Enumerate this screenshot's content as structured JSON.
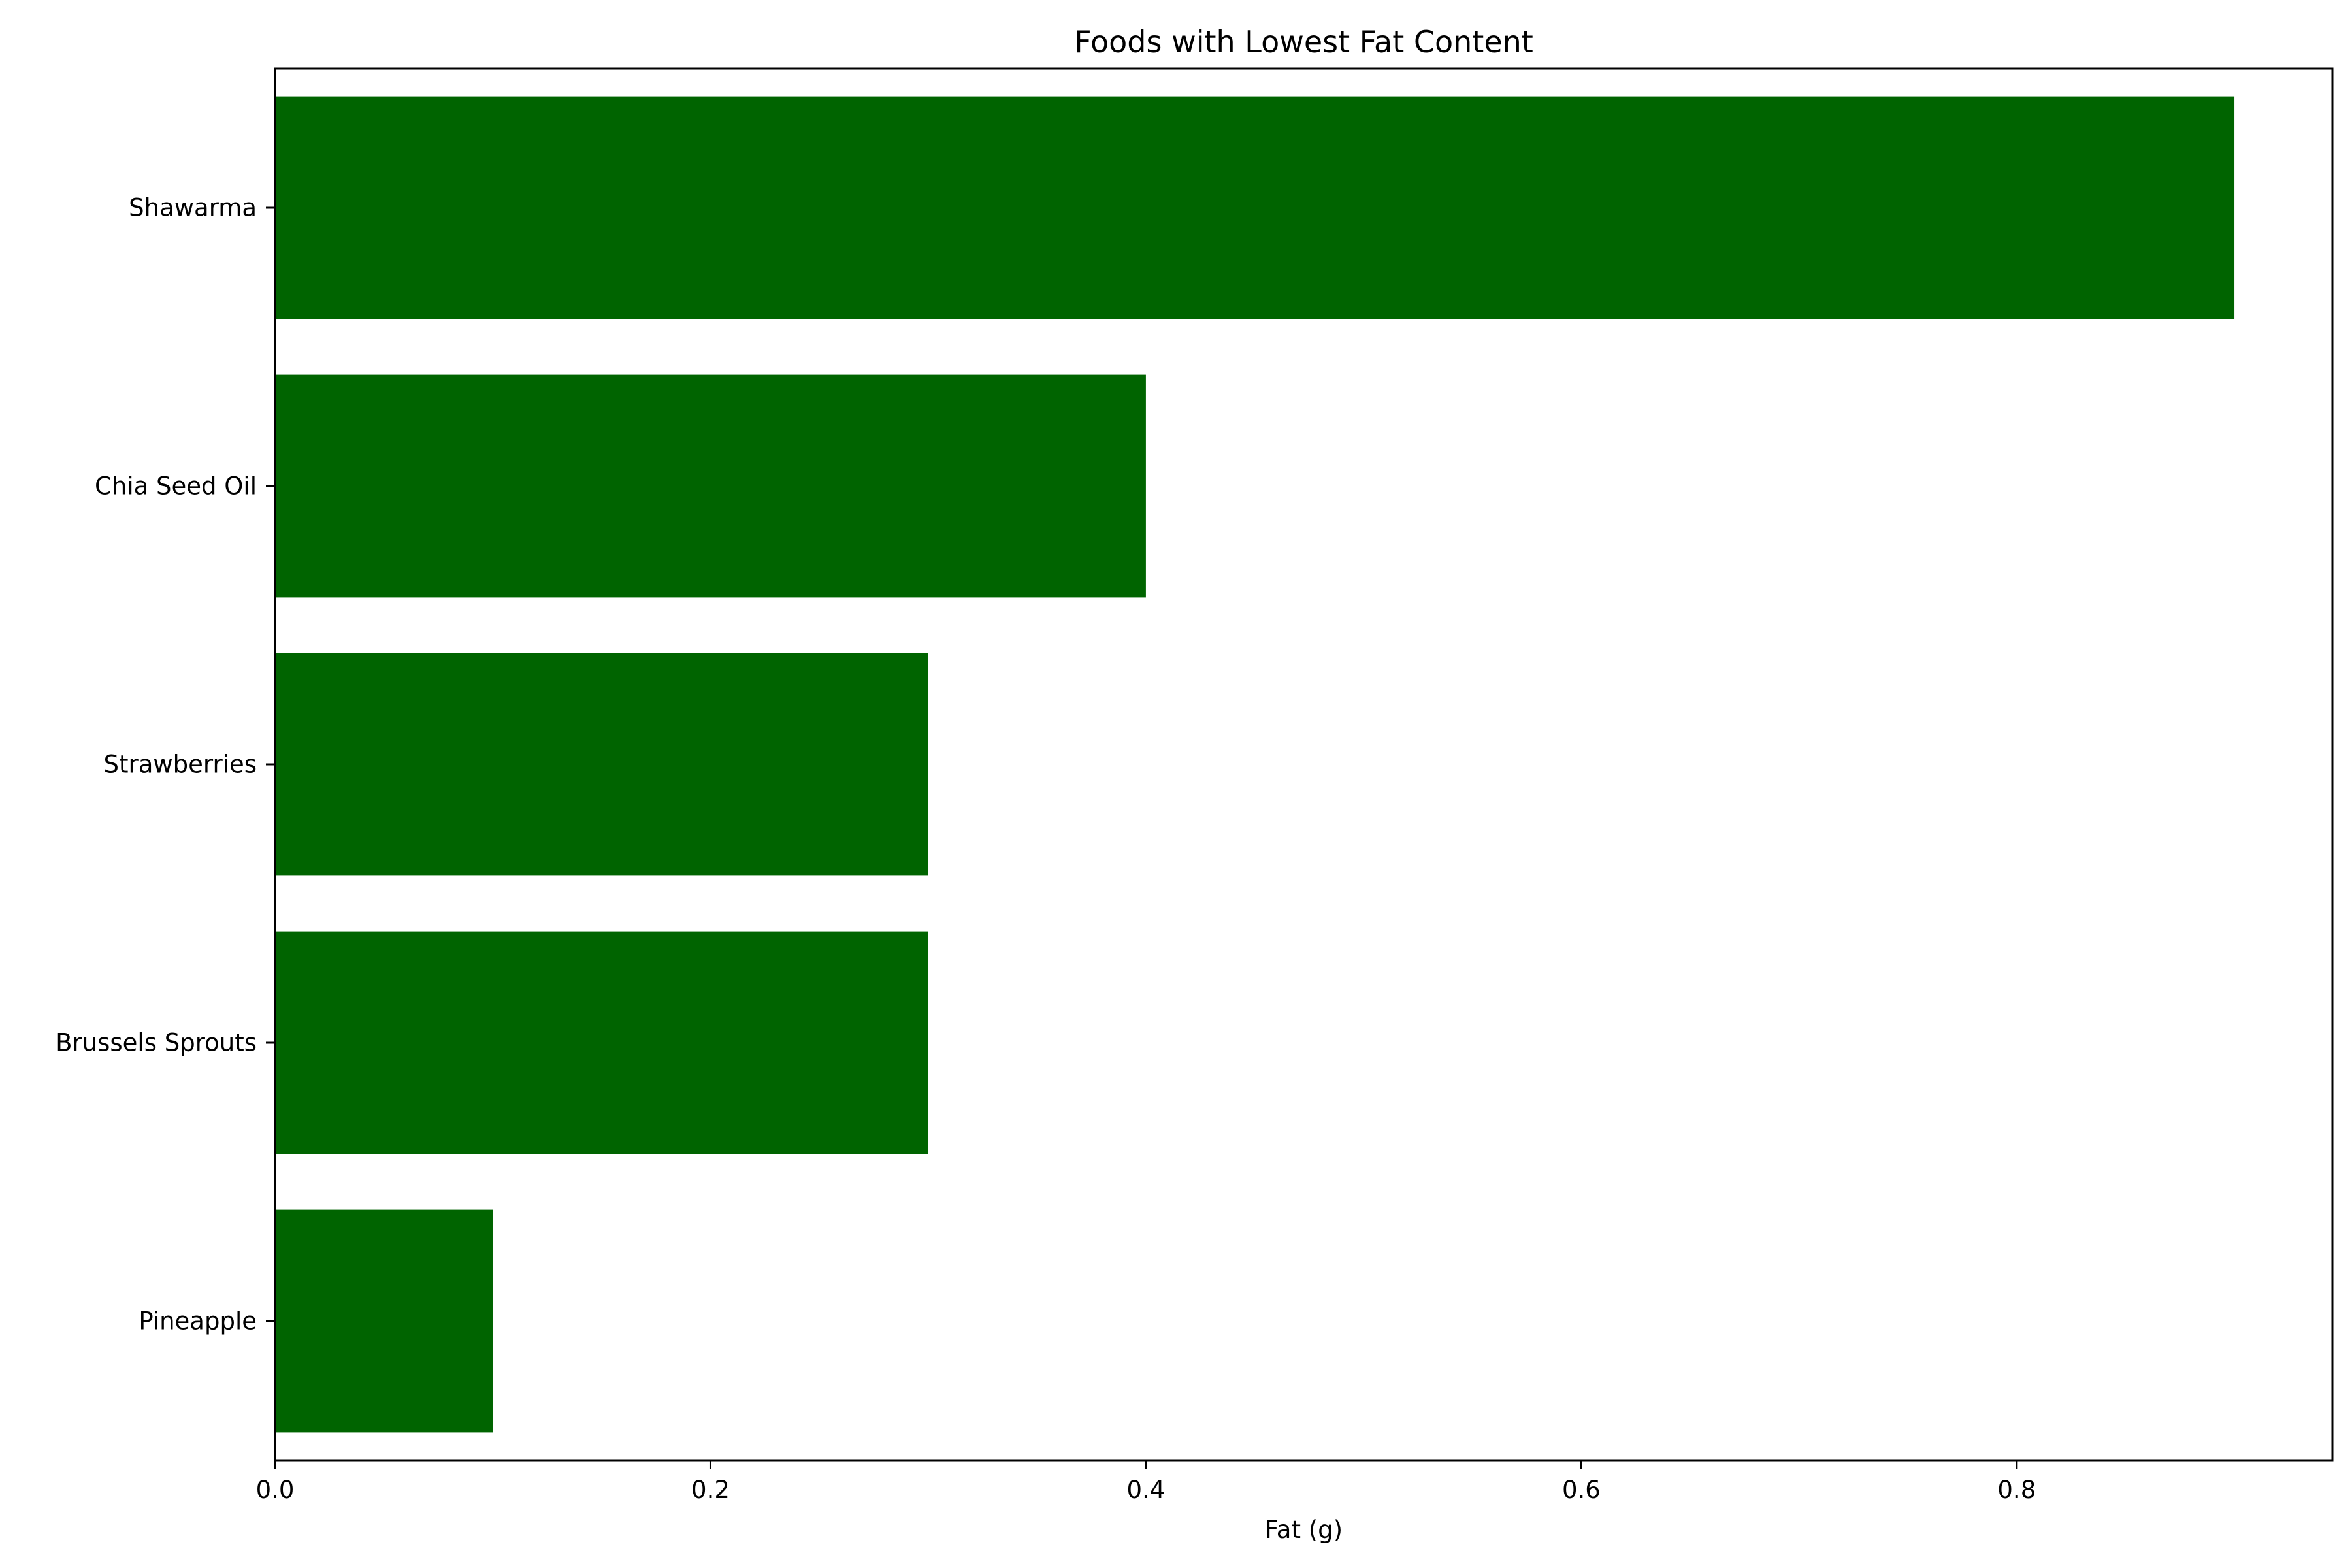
{
  "chart_data": {
    "type": "bar",
    "orientation": "horizontal",
    "title": "Foods with Lowest Fat Content",
    "xlabel": "Fat (g)",
    "ylabel": "",
    "categories": [
      "Shawarma",
      "Chia Seed Oil",
      "Strawberries",
      "Brussels Sprouts",
      "Pineapple"
    ],
    "values": [
      0.9,
      0.4,
      0.3,
      0.3,
      0.1
    ],
    "xlim": [
      0,
      0.945
    ],
    "xticks": [
      0.0,
      0.2,
      0.4,
      0.6,
      0.8
    ],
    "xtick_labels": [
      "0.0",
      "0.2",
      "0.4",
      "0.6",
      "0.8"
    ],
    "bar_color": "#006400",
    "grid": false
  }
}
